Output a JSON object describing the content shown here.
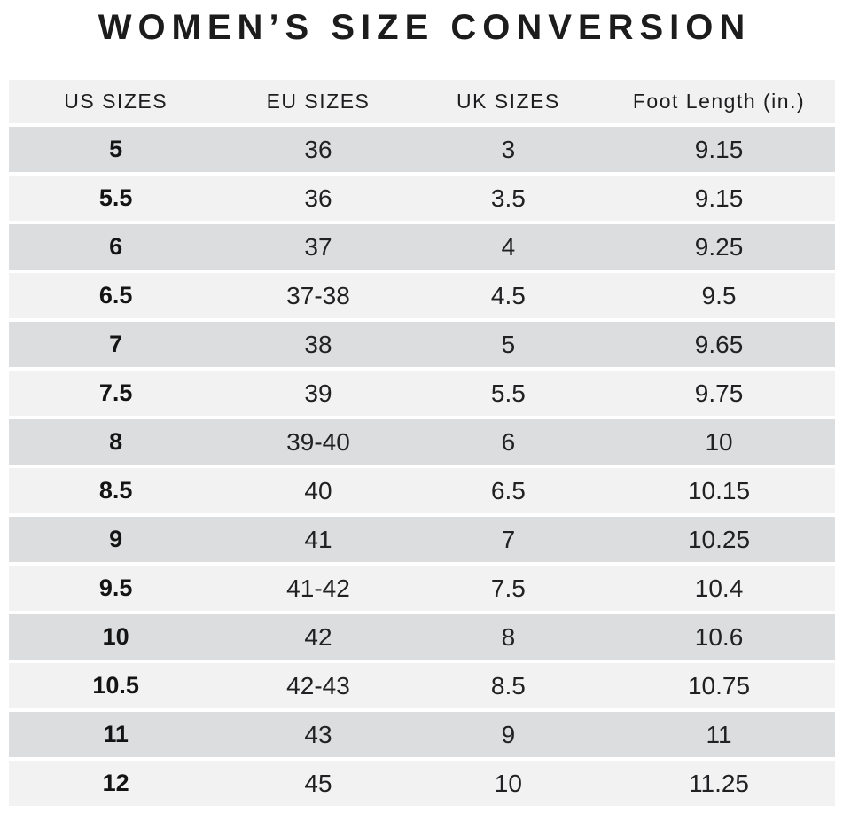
{
  "title": "WOMEN’S SIZE CONVERSION",
  "colors": {
    "row_dark": "#dcddde",
    "row_light": "#f2f2f3",
    "header_bg": "#f1f1f2",
    "text": "#212123",
    "title_color": "#1c1c1c",
    "background": "#ffffff"
  },
  "chart_data": {
    "type": "table",
    "title": "WOMEN’S SIZE CONVERSION",
    "columns": [
      "US SIZES",
      "EU SIZES",
      "UK SIZES",
      "Foot Length (in.)"
    ],
    "rows": [
      [
        "5",
        "36",
        "3",
        "9.15"
      ],
      [
        "5.5",
        "36",
        "3.5",
        "9.15"
      ],
      [
        "6",
        "37",
        "4",
        "9.25"
      ],
      [
        "6.5",
        "37-38",
        "4.5",
        "9.5"
      ],
      [
        "7",
        "38",
        "5",
        "9.65"
      ],
      [
        "7.5",
        "39",
        "5.5",
        "9.75"
      ],
      [
        "8",
        "39-40",
        "6",
        "10"
      ],
      [
        "8.5",
        "40",
        "6.5",
        "10.15"
      ],
      [
        "9",
        "41",
        "7",
        "10.25"
      ],
      [
        "9.5",
        "41-42",
        "7.5",
        "10.4"
      ],
      [
        "10",
        "42",
        "8",
        "10.6"
      ],
      [
        "10.5",
        "42-43",
        "8.5",
        "10.75"
      ],
      [
        "11",
        "43",
        "9",
        "11"
      ],
      [
        "12",
        "45",
        "10",
        "11.25"
      ]
    ],
    "layout": {
      "row_striping": "alternating dark/light starting dark",
      "first_column_bold": true,
      "alignment": "center"
    }
  }
}
